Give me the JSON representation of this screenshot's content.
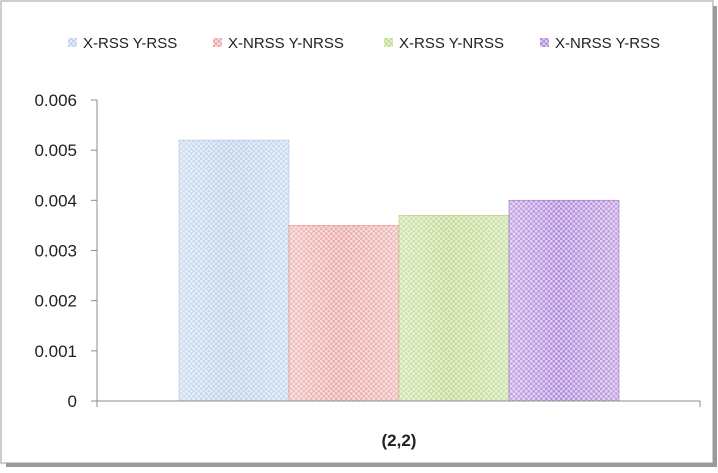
{
  "chart_data": {
    "type": "bar",
    "categories": [
      "(2,2)"
    ],
    "series": [
      {
        "name": "X-RSS Y-RSS",
        "values": [
          0.0052
        ],
        "color": "#9dbbe0"
      },
      {
        "name": "X-NRSS Y-NRSS",
        "values": [
          0.0035
        ],
        "color": "#e07f7c"
      },
      {
        "name": "X-RSS Y-NRSS",
        "values": [
          0.0037
        ],
        "color": "#a3c75a"
      },
      {
        "name": "X-NRSS Y-RSS",
        "values": [
          0.004
        ],
        "color": "#8a4fc9"
      }
    ],
    "title": "",
    "xlabel": "",
    "ylabel": "",
    "ylim": [
      0,
      0.006
    ],
    "yticks": [
      "0",
      "0.001",
      "0.002",
      "0.003",
      "0.004",
      "0.005",
      "0.006"
    ],
    "legend_position": "top",
    "grid": false,
    "bar_fill": "patterned"
  }
}
